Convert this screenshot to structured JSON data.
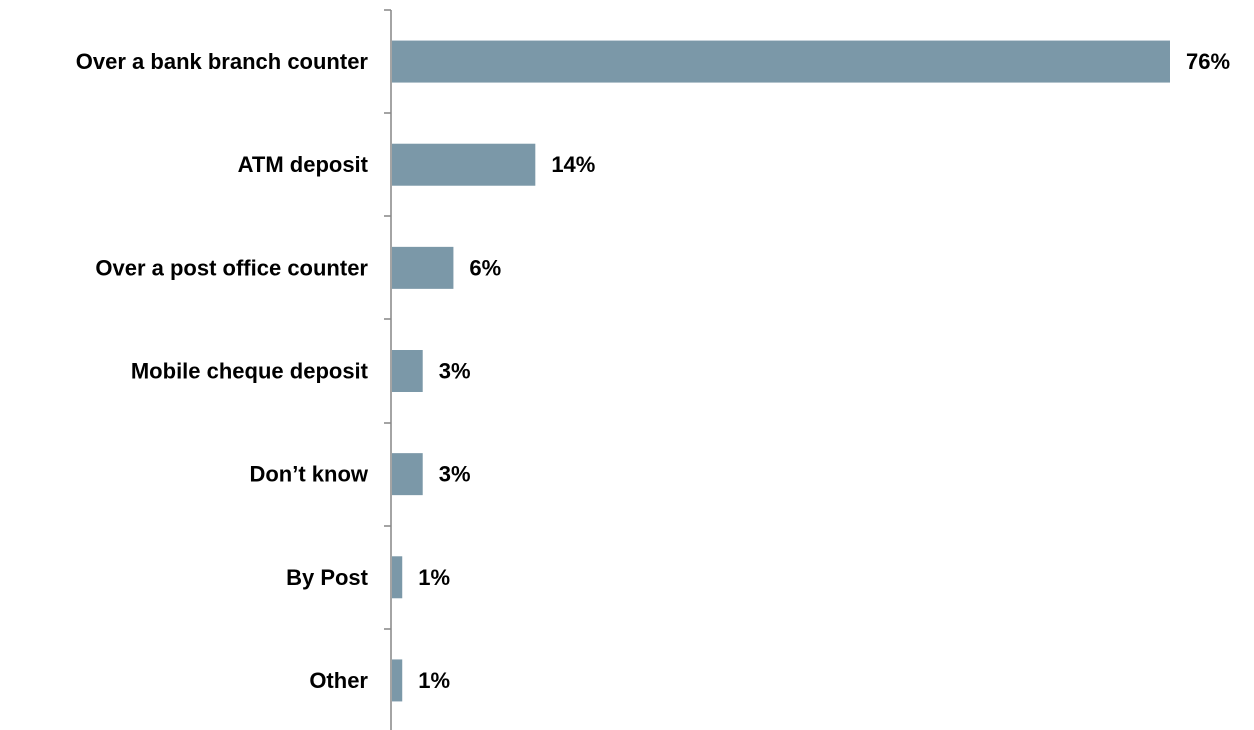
{
  "chart_data": {
    "type": "bar",
    "orientation": "horizontal",
    "title": "",
    "xlabel": "",
    "ylabel": "",
    "categories": [
      "Over a bank branch counter",
      "ATM deposit",
      "Over a post office counter",
      "Mobile cheque deposit",
      "Don’t know",
      "By Post",
      "Other"
    ],
    "values": [
      76,
      14,
      6,
      3,
      3,
      1,
      1
    ],
    "value_labels": [
      "76%",
      "14%",
      "6%",
      "3%",
      "3%",
      "1%",
      "1%"
    ],
    "unit": "%",
    "xlim": [
      0,
      76
    ],
    "grid": false,
    "legend": "none",
    "bar_color": "#7b98a8",
    "axis_color": "#868686"
  }
}
